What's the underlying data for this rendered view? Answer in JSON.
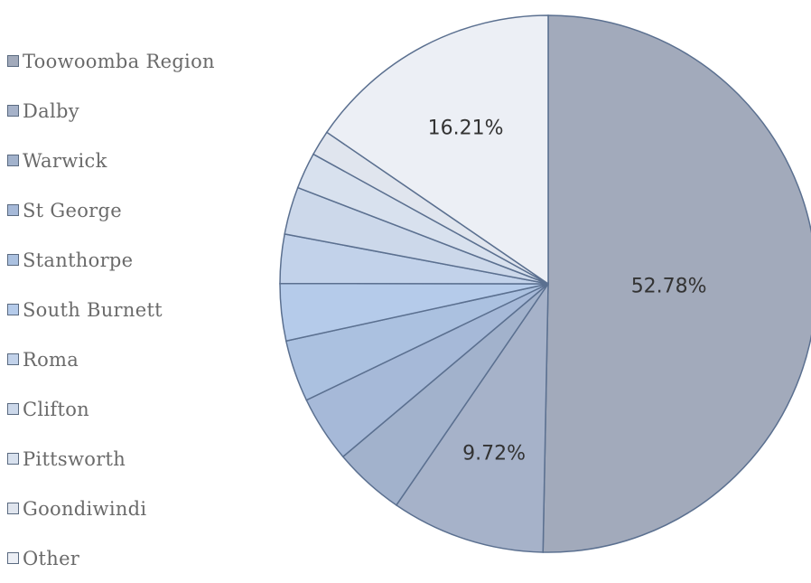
{
  "chart_data": {
    "type": "pie",
    "categories": [
      "Toowoomba Region",
      "Dalby",
      "Warwick",
      "St George",
      "Stanthorpe",
      "South Burnett",
      "Roma",
      "Clifton",
      "Pittsworth",
      "Goondiwindi",
      "Other"
    ],
    "values": [
      52.78,
      9.72,
      4.5,
      4.2,
      3.9,
      3.6,
      3.1,
      3.0,
      2.3,
      1.6,
      16.21
    ],
    "data_labels": [
      "52.78%",
      "9.72%",
      "",
      "",
      "",
      "",
      "",
      "",
      "",
      "",
      "16.21%"
    ],
    "colors": [
      "#a2aabb",
      "#a6b2c9",
      "#a2b2cc",
      "#a6b9d8",
      "#abc1e0",
      "#b5cbea",
      "#c2d2ea",
      "#ccd8ea",
      "#d8e1ee",
      "#e0e5ee",
      "#eceff5"
    ],
    "legend_position": "left"
  }
}
